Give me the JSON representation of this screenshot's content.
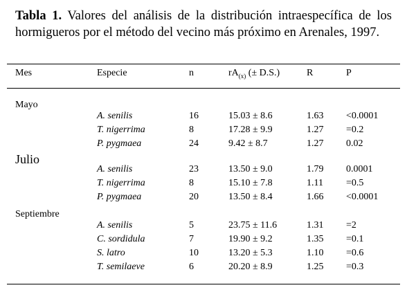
{
  "caption": {
    "label": "Tabla 1.",
    "text": "Valores del análisis de la distribución intraespecífica de los hormigueros por el método del vecino más próximo en Arenales, 1997."
  },
  "table": {
    "header": {
      "mes": "Mes",
      "especie": "Especie",
      "n": "n",
      "ra": {
        "main": "rA",
        "sub": "(x)",
        "rest": "(± D.S.)"
      },
      "r": "R",
      "p": "P"
    },
    "groups": [
      {
        "month": "Mayo",
        "rows": [
          [
            "A. senilis",
            "16",
            "15.03 ± 8.6",
            "1.63",
            "<0.0001"
          ],
          [
            "T. nigerrima",
            "8",
            "17.28 ± 9.9",
            "1.27",
            "=0.2"
          ],
          [
            "P. pygmaea",
            "24",
            "9.42 ± 8.7",
            "1.27",
            "0.02"
          ]
        ]
      },
      {
        "month": "Julio",
        "rows": [
          [
            "A. senilis",
            "23",
            "13.50 ± 9.0",
            "1.79",
            "0.0001"
          ],
          [
            "T. nigerrima",
            "8",
            "15.10 ± 7.8",
            "1.11",
            "=0.5"
          ],
          [
            "P. pygmaea",
            "20",
            "13.50 ± 8.4",
            "1.66",
            "<0.0001"
          ]
        ]
      },
      {
        "month": "Septiembre",
        "rows": [
          [
            "A. senilis",
            "5",
            "23.75 ± 11.6",
            "1.31",
            "=2"
          ],
          [
            "C. sordidula",
            "7",
            "19.90 ± 9.2",
            "1.35",
            "=0.1"
          ],
          [
            "S. latro",
            "10",
            "13.20 ± 5.3",
            "1.10",
            "=0.6"
          ],
          [
            "T. semilaeve",
            "6",
            "20.20 ± 8.9",
            "1.25",
            "=0.3"
          ]
        ]
      }
    ]
  }
}
